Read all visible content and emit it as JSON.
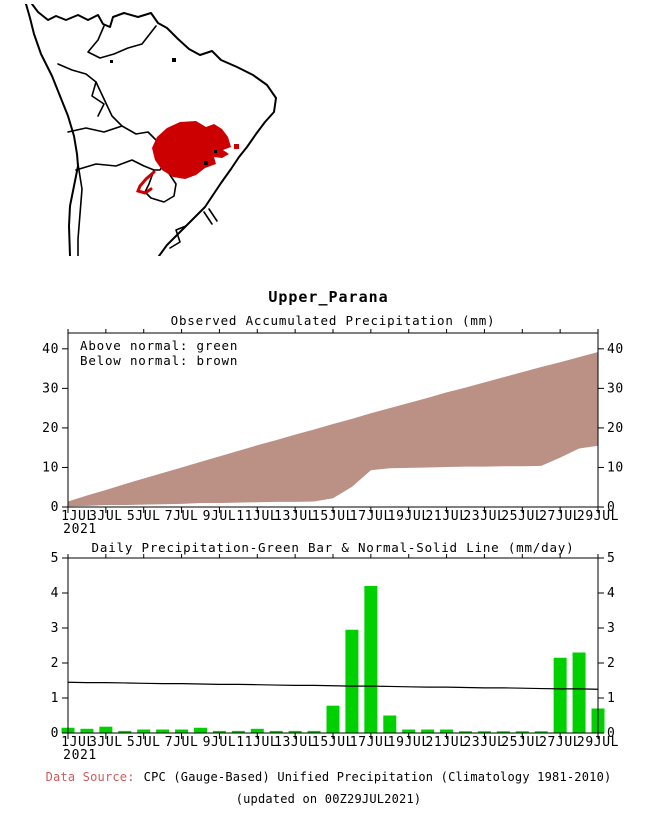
{
  "title": "Upper_Parana",
  "map": {
    "region_color": "#cc0000",
    "outline_color": "#000000"
  },
  "colors": {
    "band_brown": "#bb9186",
    "bar_green": "#00d000",
    "normal_line": "#000000",
    "source_label_red": "#cd5c5c"
  },
  "chart_data": [
    {
      "id": "accumulated",
      "type": "area",
      "title": "Observed Accumulated Precipitation (mm)",
      "annotations": [
        "Above normal: green",
        "Below normal: brown"
      ],
      "legend_position": "top-left",
      "x_days": [
        1,
        2,
        3,
        4,
        5,
        6,
        7,
        8,
        9,
        10,
        11,
        12,
        13,
        14,
        15,
        16,
        17,
        18,
        19,
        20,
        21,
        22,
        23,
        24,
        25,
        26,
        27,
        28,
        29
      ],
      "x_tick_labels": [
        "1JUL",
        "3JUL",
        "5JUL",
        "7JUL",
        "9JUL",
        "11JUL",
        "13JUL",
        "15JUL",
        "17JUL",
        "19JUL",
        "21JUL",
        "23JUL",
        "25JUL",
        "27JUL",
        "29JUL"
      ],
      "x_year": "2021",
      "ylim": [
        0,
        44
      ],
      "yticks": [
        0,
        10,
        20,
        30,
        40
      ],
      "band_color": "#bb9186",
      "series": [
        {
          "name": "normal_cumulative_mm",
          "values": [
            1.4,
            2.9,
            4.3,
            5.8,
            7.2,
            8.6,
            10.0,
            11.4,
            12.8,
            14.2,
            15.6,
            16.9,
            18.3,
            19.6,
            21.0,
            22.3,
            23.7,
            25.0,
            26.3,
            27.6,
            29.0,
            30.2,
            31.5,
            32.8,
            34.1,
            35.4,
            36.6,
            37.9,
            39.2
          ]
        },
        {
          "name": "observed_cumulative_mm",
          "values": [
            0.2,
            0.3,
            0.5,
            0.5,
            0.6,
            0.7,
            0.8,
            1.0,
            1.0,
            1.1,
            1.2,
            1.3,
            1.3,
            1.4,
            2.2,
            5.1,
            9.3,
            9.8,
            9.9,
            10.0,
            10.1,
            10.2,
            10.2,
            10.3,
            10.3,
            10.4,
            12.5,
            14.8,
            15.5
          ]
        }
      ]
    },
    {
      "id": "daily",
      "type": "bar",
      "title": "Daily Precipitation-Green Bar & Normal-Solid Line (mm/day)",
      "x_days": [
        1,
        2,
        3,
        4,
        5,
        6,
        7,
        8,
        9,
        10,
        11,
        12,
        13,
        14,
        15,
        16,
        17,
        18,
        19,
        20,
        21,
        22,
        23,
        24,
        25,
        26,
        27,
        28,
        29
      ],
      "x_tick_labels": [
        "1JUL",
        "3JUL",
        "5JUL",
        "7JUL",
        "9JUL",
        "11JUL",
        "13JUL",
        "15JUL",
        "17JUL",
        "19JUL",
        "21JUL",
        "23JUL",
        "25JUL",
        "27JUL",
        "29JUL"
      ],
      "x_year": "2021",
      "ylim": [
        0,
        5
      ],
      "yticks": [
        0,
        1,
        2,
        3,
        4,
        5
      ],
      "series": [
        {
          "name": "daily_precipitation_mm",
          "type": "bar",
          "color": "#00d000",
          "values": [
            0.15,
            0.12,
            0.18,
            0.06,
            0.1,
            0.1,
            0.1,
            0.15,
            0.06,
            0.06,
            0.12,
            0.06,
            0.06,
            0.06,
            0.78,
            2.95,
            4.2,
            0.5,
            0.1,
            0.1,
            0.1,
            0.05,
            0.05,
            0.05,
            0.05,
            0.05,
            2.15,
            2.3,
            0.7
          ]
        },
        {
          "name": "normal_mm_per_day",
          "type": "line",
          "color": "#000000",
          "values": [
            1.45,
            1.44,
            1.44,
            1.43,
            1.42,
            1.41,
            1.41,
            1.4,
            1.39,
            1.39,
            1.38,
            1.37,
            1.36,
            1.36,
            1.35,
            1.34,
            1.34,
            1.33,
            1.32,
            1.31,
            1.31,
            1.3,
            1.29,
            1.29,
            1.28,
            1.27,
            1.26,
            1.26,
            1.25
          ]
        }
      ]
    }
  ],
  "footer": {
    "source_label": "Data Source:",
    "source_text": "CPC (Gauge-Based) Unified Precipitation (Climatology 1981-2010)",
    "updated": "(updated on 00Z29JUL2021)"
  }
}
